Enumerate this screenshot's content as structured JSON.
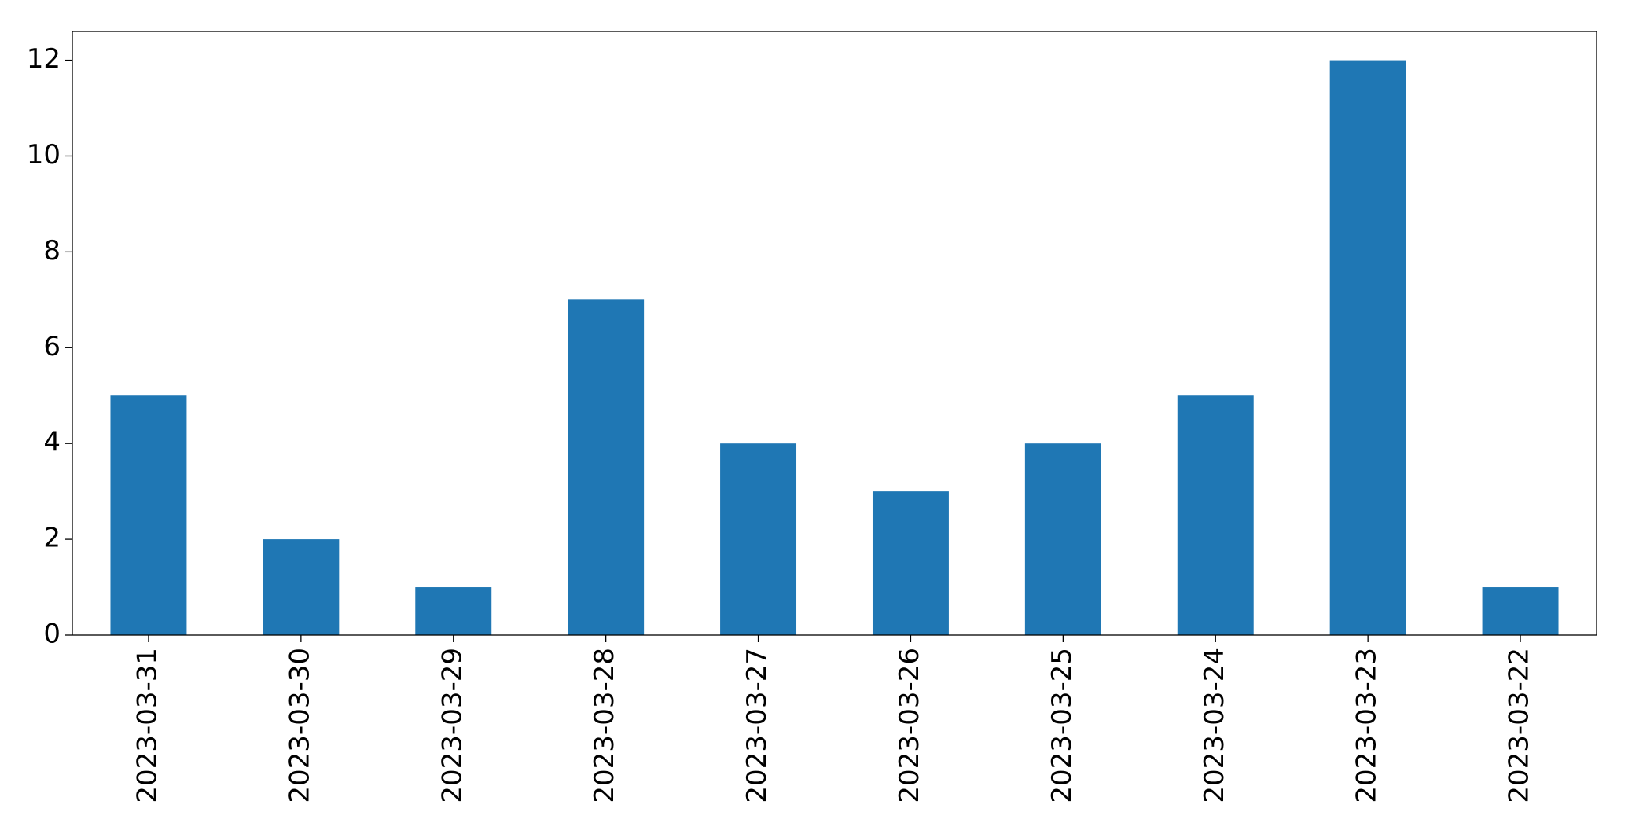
{
  "chart_data": {
    "type": "bar",
    "categories": [
      "2023-03-31",
      "2023-03-30",
      "2023-03-29",
      "2023-03-28",
      "2023-03-27",
      "2023-03-26",
      "2023-03-25",
      "2023-03-24",
      "2023-03-23",
      "2023-03-22"
    ],
    "values": [
      5,
      2,
      1,
      7,
      4,
      3,
      4,
      5,
      12,
      1
    ],
    "color": "#1f77b4",
    "ylim": [
      0,
      12.6
    ],
    "yticks": [
      0,
      2,
      4,
      6,
      8,
      10,
      12
    ],
    "grid": false
  }
}
